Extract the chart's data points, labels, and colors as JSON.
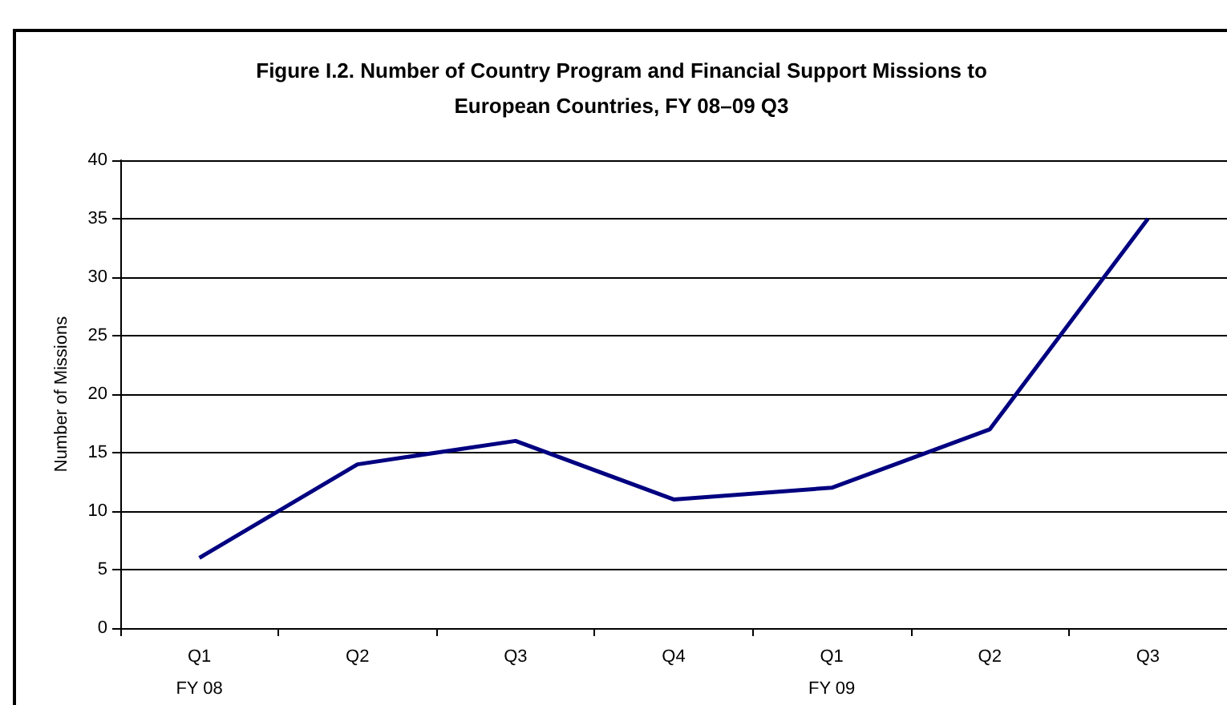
{
  "chart_data": {
    "type": "line",
    "title": "Figure I.2. Number of Country Program and Financial Support Missions to\nEuropean Countries, FY 08–09 Q3",
    "ylabel": "Number of Missions",
    "categories": [
      "Q1\nFY 08",
      "Q2",
      "Q3",
      "Q4",
      "Q1\nFY 09",
      "Q2",
      "Q3"
    ],
    "series": [
      {
        "color": "#000080",
        "values": [
          6,
          14,
          16,
          11,
          12,
          17,
          35
        ]
      }
    ],
    "ylim": [
      0,
      40
    ],
    "yticks": [
      0,
      5,
      10,
      15,
      20,
      25,
      30,
      35,
      40
    ],
    "grid": "y",
    "marker": "none",
    "line_style": "solid"
  }
}
